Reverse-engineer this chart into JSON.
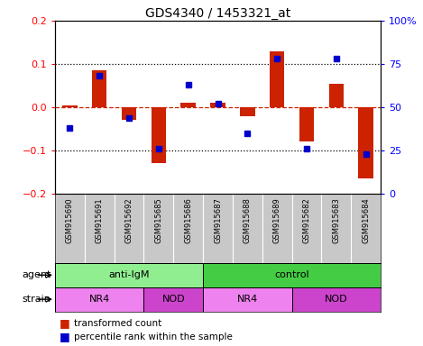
{
  "title": "GDS4340 / 1453321_at",
  "samples": [
    "GSM915690",
    "GSM915691",
    "GSM915692",
    "GSM915685",
    "GSM915686",
    "GSM915687",
    "GSM915688",
    "GSM915689",
    "GSM915682",
    "GSM915683",
    "GSM915684"
  ],
  "red_bars": [
    0.005,
    0.085,
    -0.03,
    -0.13,
    0.01,
    0.01,
    -0.02,
    0.13,
    -0.08,
    0.055,
    -0.165
  ],
  "blue_dots": [
    38,
    68,
    44,
    26,
    63,
    52,
    35,
    78,
    26,
    78,
    23
  ],
  "ylim_left": [
    -0.2,
    0.2
  ],
  "ylim_right": [
    0,
    100
  ],
  "yticks_left": [
    -0.2,
    -0.1,
    0.0,
    0.1,
    0.2
  ],
  "yticks_right": [
    0,
    25,
    50,
    75,
    100
  ],
  "ytick_labels_right": [
    "0",
    "25",
    "50",
    "75",
    "100%"
  ],
  "hlines_dotted": [
    0.1,
    -0.1
  ],
  "hline_dashed": 0.0,
  "agent_groups": [
    {
      "label": "anti-IgM",
      "start": 0,
      "end": 5,
      "color": "#90EE90"
    },
    {
      "label": "control",
      "start": 5,
      "end": 11,
      "color": "#44CC44"
    }
  ],
  "strain_groups": [
    {
      "label": "NR4",
      "start": 0,
      "end": 3,
      "color": "#EE82EE"
    },
    {
      "label": "NOD",
      "start": 3,
      "end": 5,
      "color": "#CC44CC"
    },
    {
      "label": "NR4",
      "start": 5,
      "end": 8,
      "color": "#EE82EE"
    },
    {
      "label": "NOD",
      "start": 8,
      "end": 11,
      "color": "#CC44CC"
    }
  ],
  "bar_color": "#CC2200",
  "dot_color": "#0000CC",
  "zero_line_color": "#CC2200",
  "agent_label": "agent",
  "strain_label": "strain",
  "legend_red": "transformed count",
  "legend_blue": "percentile rank within the sample",
  "plot_bg": "#FFFFFF",
  "bar_width": 0.5,
  "label_bg": "#C8C8C8"
}
